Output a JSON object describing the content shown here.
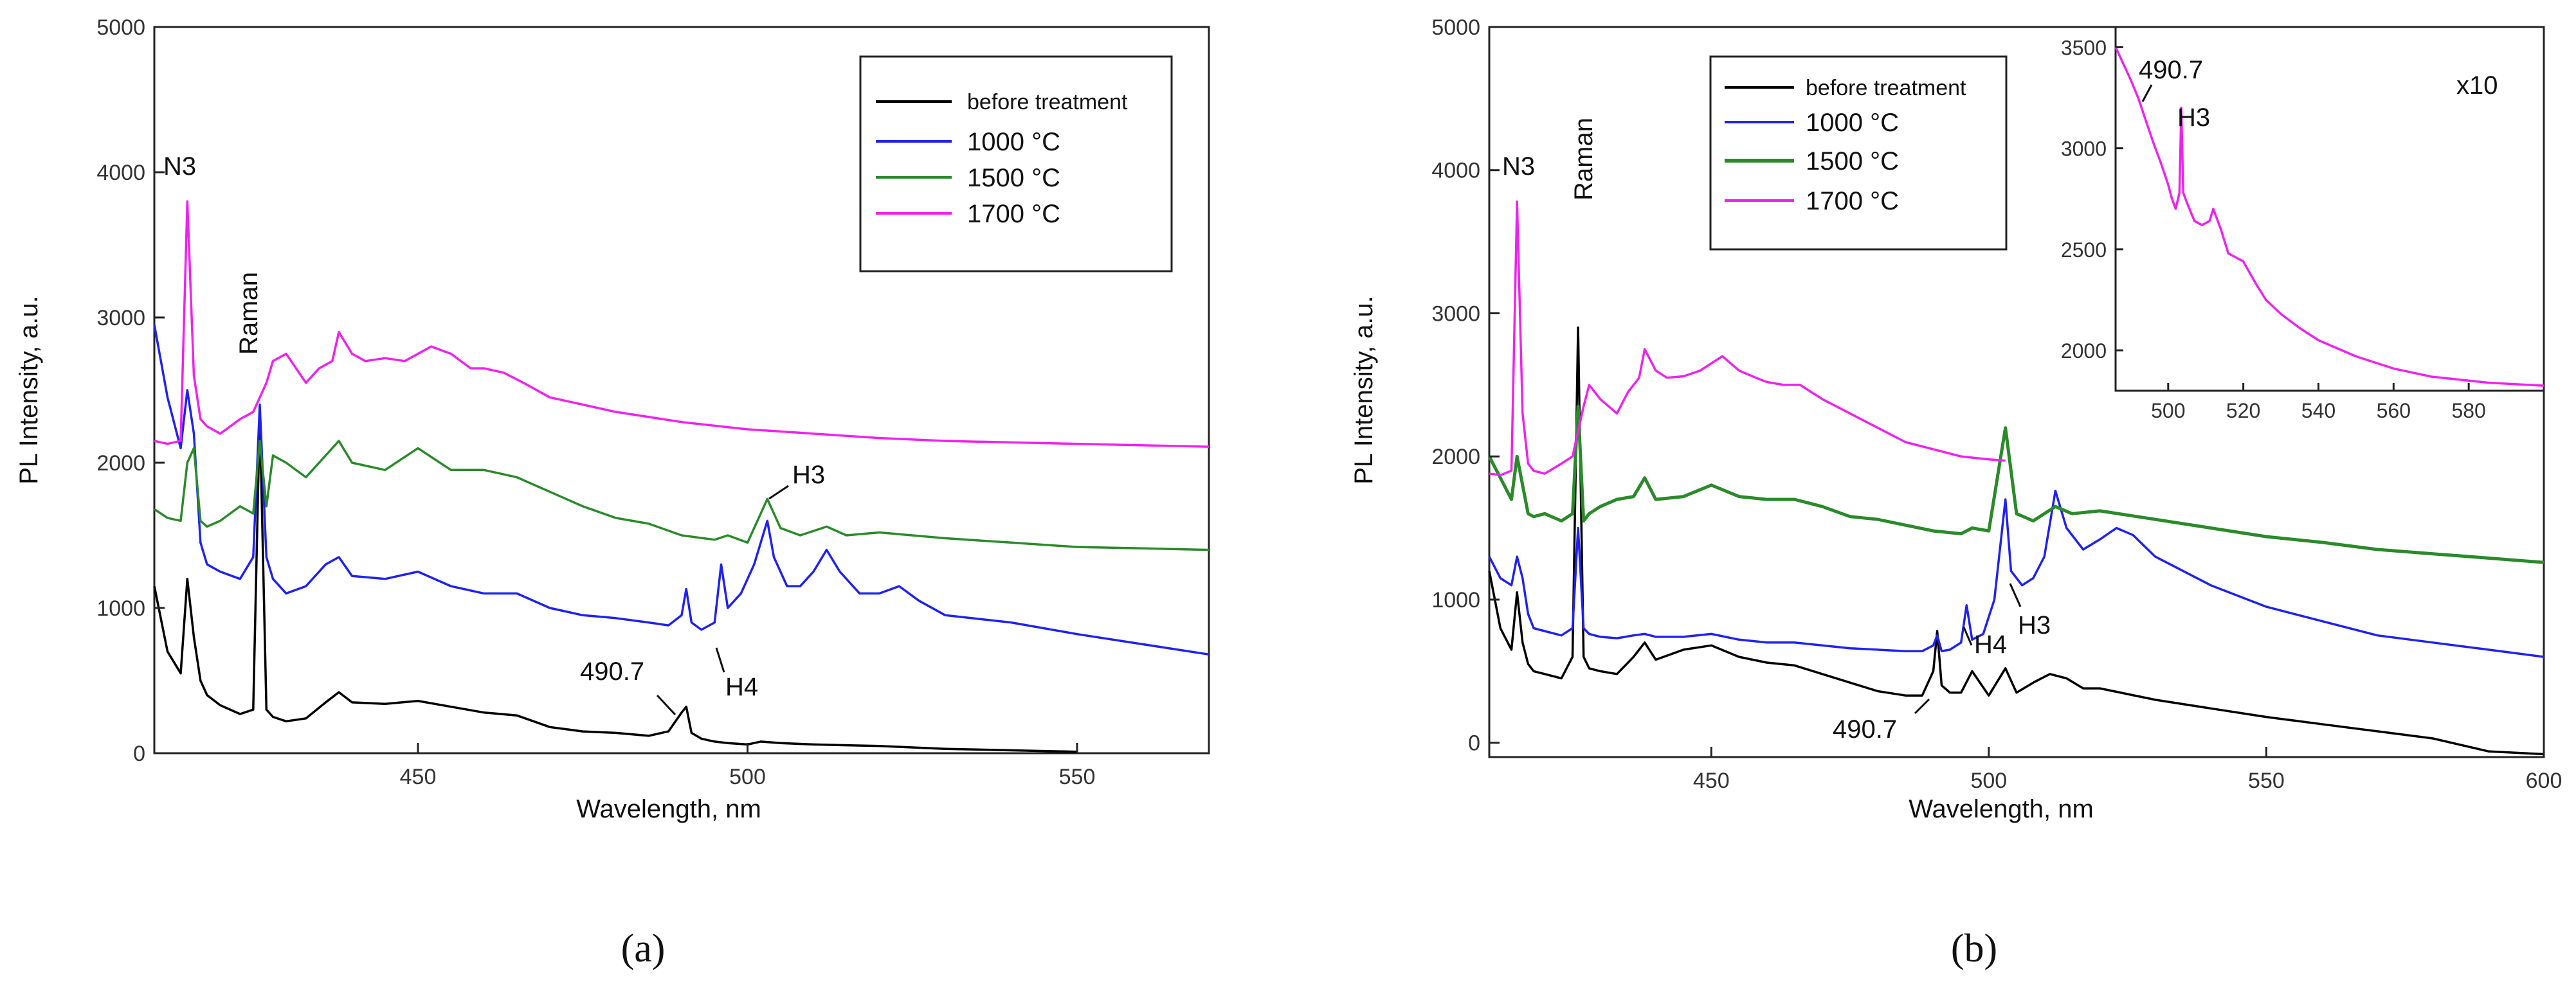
{
  "chart_data": [
    {
      "panel": "(a)",
      "type": "line",
      "xlabel": "Wavelength, nm",
      "ylabel": "PL Intensity, a.u.",
      "xlim": [
        410,
        570
      ],
      "ylim": [
        0,
        5000
      ],
      "xticks": [
        450,
        500,
        550
      ],
      "yticks": [
        0,
        1000,
        2000,
        3000,
        4000,
        5000
      ],
      "legend_position": "top-right",
      "series": [
        {
          "name": "before treatment",
          "color": "#000000",
          "x": [
            410,
            412,
            414,
            415,
            416,
            417,
            418,
            420,
            423,
            425,
            426,
            427,
            428,
            430,
            433,
            436,
            438,
            440,
            445,
            450,
            455,
            460,
            465,
            470,
            475,
            480,
            485,
            488,
            490,
            490.7,
            491.5,
            493,
            495,
            497,
            500,
            502,
            505,
            510,
            515,
            520,
            525,
            530,
            540,
            550
          ],
          "y": [
            1150,
            700,
            550,
            1200,
            800,
            500,
            400,
            330,
            270,
            300,
            2350,
            300,
            250,
            220,
            240,
            350,
            420,
            350,
            340,
            360,
            320,
            280,
            260,
            180,
            150,
            140,
            120,
            150,
            280,
            320,
            140,
            100,
            80,
            70,
            60,
            80,
            70,
            60,
            55,
            50,
            40,
            30,
            20,
            10
          ]
        },
        {
          "name": "1000 °C",
          "color": "#1f22ee",
          "x": [
            410,
            412,
            414,
            415,
            416,
            417,
            418,
            420,
            423,
            425,
            426,
            427,
            428,
            430,
            433,
            436,
            438,
            440,
            445,
            450,
            455,
            460,
            465,
            470,
            475,
            480,
            485,
            488,
            490,
            490.7,
            491.5,
            493,
            495,
            496,
            497,
            499,
            501,
            503,
            504,
            506,
            508,
            510,
            512,
            514,
            517,
            520,
            523,
            526,
            530,
            540,
            550,
            560,
            570
          ],
          "y": [
            2950,
            2450,
            2100,
            2500,
            2200,
            1450,
            1300,
            1250,
            1200,
            1350,
            2400,
            1350,
            1200,
            1100,
            1150,
            1300,
            1350,
            1220,
            1200,
            1250,
            1150,
            1100,
            1100,
            1000,
            950,
            930,
            900,
            880,
            950,
            1130,
            900,
            850,
            900,
            1300,
            1000,
            1100,
            1300,
            1600,
            1350,
            1150,
            1150,
            1250,
            1400,
            1250,
            1100,
            1100,
            1150,
            1050,
            950,
            900,
            820,
            750,
            680
          ]
        },
        {
          "name": "1500 °C",
          "color": "#2a8a2a",
          "x": [
            410,
            412,
            414,
            415,
            416,
            417,
            418,
            420,
            423,
            425,
            426,
            427,
            428,
            430,
            433,
            436,
            438,
            440,
            445,
            450,
            455,
            460,
            465,
            470,
            475,
            480,
            485,
            490,
            495,
            497,
            500,
            503,
            505,
            508,
            512,
            515,
            520,
            530,
            540,
            550,
            560,
            570
          ],
          "y": [
            1680,
            1620,
            1600,
            2000,
            2100,
            1600,
            1560,
            1600,
            1700,
            1650,
            2150,
            1700,
            2050,
            2000,
            1900,
            2050,
            2150,
            2000,
            1950,
            2100,
            1950,
            1950,
            1900,
            1800,
            1700,
            1620,
            1580,
            1500,
            1470,
            1500,
            1450,
            1750,
            1550,
            1500,
            1560,
            1500,
            1520,
            1480,
            1450,
            1420,
            1410,
            1400
          ]
        },
        {
          "name": "1700 °C",
          "color": "#ee22ee",
          "x": [
            410,
            412,
            414,
            415,
            416,
            417,
            418,
            420,
            423,
            425,
            427,
            428,
            430,
            433,
            435,
            437,
            438,
            440,
            442,
            445,
            448,
            452,
            455,
            458,
            460,
            463,
            466,
            470,
            475,
            480,
            490,
            500,
            510,
            520,
            530,
            540,
            550,
            560,
            570
          ],
          "y": [
            2150,
            2130,
            2150,
            3800,
            2600,
            2300,
            2250,
            2200,
            2300,
            2350,
            2550,
            2700,
            2750,
            2550,
            2650,
            2700,
            2900,
            2750,
            2700,
            2720,
            2700,
            2800,
            2750,
            2650,
            2650,
            2620,
            2550,
            2450,
            2400,
            2350,
            2280,
            2230,
            2200,
            2170,
            2150,
            2140,
            2130,
            2120,
            2110
          ]
        }
      ],
      "annotations": [
        "N3",
        "Raman",
        "H3",
        "H4",
        "490.7"
      ]
    },
    {
      "panel": "(b)",
      "type": "line",
      "xlabel": "Wavelength, nm",
      "ylabel": "PL Intensity, a.u.",
      "xlim": [
        410,
        600
      ],
      "ylim": [
        -100,
        5000
      ],
      "xticks": [
        450,
        500,
        550,
        600
      ],
      "yticks": [
        0,
        1000,
        2000,
        3000,
        4000,
        5000
      ],
      "legend_position": "top-left",
      "series": [
        {
          "name": "before treatment",
          "color": "#000000",
          "x": [
            410,
            412,
            414,
            415,
            416,
            417,
            418,
            420,
            423,
            425,
            426,
            427,
            428,
            430,
            433,
            436,
            438,
            440,
            445,
            450,
            455,
            460,
            465,
            470,
            475,
            480,
            485,
            488,
            490,
            490.7,
            491.5,
            493,
            495,
            497,
            500,
            503,
            505,
            508,
            511,
            514,
            517,
            520,
            525,
            530,
            540,
            550,
            560,
            570,
            580,
            590,
            600
          ],
          "y": [
            1200,
            800,
            650,
            1050,
            700,
            550,
            500,
            480,
            450,
            600,
            2900,
            600,
            520,
            500,
            480,
            600,
            700,
            580,
            650,
            680,
            600,
            560,
            540,
            480,
            420,
            360,
            330,
            330,
            500,
            780,
            400,
            350,
            350,
            500,
            330,
            520,
            350,
            420,
            480,
            450,
            380,
            380,
            340,
            300,
            240,
            180,
            130,
            80,
            30,
            -60,
            -80
          ]
        },
        {
          "name": "1000 °C",
          "color": "#1f22ee",
          "x": [
            410,
            412,
            414,
            415,
            416,
            417,
            418,
            420,
            423,
            425,
            426,
            427,
            428,
            430,
            433,
            436,
            438,
            440,
            445,
            450,
            455,
            460,
            465,
            470,
            475,
            480,
            485,
            488,
            490,
            490.7,
            491.5,
            493,
            495,
            496,
            497,
            499,
            501,
            503,
            504,
            506,
            508,
            510,
            512,
            514,
            517,
            520,
            523,
            526,
            530,
            540,
            550,
            560,
            570,
            580,
            590,
            600
          ],
          "y": [
            1300,
            1150,
            1100,
            1300,
            1150,
            900,
            800,
            780,
            750,
            800,
            1500,
            800,
            760,
            740,
            730,
            750,
            760,
            740,
            740,
            760,
            720,
            700,
            700,
            680,
            660,
            650,
            640,
            640,
            680,
            750,
            640,
            650,
            700,
            960,
            720,
            760,
            1000,
            1700,
            1200,
            1100,
            1150,
            1300,
            1760,
            1500,
            1350,
            1420,
            1500,
            1450,
            1300,
            1100,
            950,
            850,
            750,
            700,
            650,
            600
          ]
        },
        {
          "name": "1500 °C",
          "color": "#2a8a2a",
          "x": [
            410,
            412,
            414,
            415,
            416,
            417,
            418,
            420,
            423,
            425,
            426,
            427,
            428,
            430,
            433,
            436,
            438,
            440,
            445,
            450,
            455,
            460,
            465,
            470,
            475,
            480,
            485,
            490,
            495,
            497,
            500,
            503,
            505,
            508,
            512,
            515,
            520,
            530,
            540,
            550,
            560,
            570,
            580,
            590,
            600
          ],
          "y": [
            2000,
            1850,
            1700,
            2000,
            1800,
            1600,
            1580,
            1600,
            1550,
            1600,
            2350,
            1550,
            1600,
            1650,
            1700,
            1720,
            1850,
            1700,
            1720,
            1800,
            1720,
            1700,
            1700,
            1650,
            1580,
            1560,
            1520,
            1480,
            1460,
            1500,
            1480,
            2200,
            1600,
            1550,
            1650,
            1600,
            1620,
            1560,
            1500,
            1440,
            1400,
            1350,
            1320,
            1290,
            1260
          ]
        },
        {
          "name": "1700 °C",
          "color": "#ee22ee",
          "x": [
            410,
            412,
            414,
            415,
            416,
            417,
            418,
            420,
            423,
            425,
            427,
            428,
            430,
            433,
            435,
            437,
            438,
            440,
            442,
            445,
            448,
            452,
            455,
            458,
            460,
            463,
            466,
            470,
            475,
            480,
            485,
            490,
            495,
            500,
            503
          ],
          "y": [
            1880,
            1870,
            1900,
            3780,
            2300,
            1950,
            1900,
            1880,
            1950,
            2000,
            2350,
            2500,
            2400,
            2300,
            2450,
            2550,
            2750,
            2600,
            2550,
            2560,
            2600,
            2700,
            2600,
            2550,
            2520,
            2500,
            2500,
            2400,
            2300,
            2200,
            2100,
            2050,
            2000,
            1980,
            1970
          ]
        }
      ],
      "annotations": [
        "N3",
        "Raman",
        "H3",
        "H4",
        "490.7"
      ],
      "inset": {
        "xlim": [
          486,
          600
        ],
        "ylim": [
          1800,
          3600
        ],
        "xticks": [
          500,
          520,
          540,
          560,
          580
        ],
        "yticks": [
          2000,
          2500,
          3000,
          3500
        ],
        "label": "x10",
        "annotations": [
          "490.7",
          "H3"
        ],
        "series": {
          "name": "1700 °C",
          "color": "#ee22ee",
          "x": [
            486,
            488,
            490,
            492,
            494,
            496,
            498,
            500,
            501,
            502,
            503,
            503.5,
            504,
            505,
            507,
            509,
            511,
            512,
            514,
            516,
            518,
            520,
            523,
            526,
            530,
            535,
            540,
            545,
            550,
            555,
            560,
            565,
            570,
            575,
            580,
            585,
            590,
            595,
            600
          ],
          "y": [
            3500,
            3420,
            3340,
            3250,
            3140,
            3030,
            2930,
            2820,
            2750,
            2700,
            2780,
            3200,
            2780,
            2730,
            2640,
            2620,
            2640,
            2700,
            2600,
            2480,
            2460,
            2440,
            2340,
            2250,
            2180,
            2110,
            2050,
            2010,
            1970,
            1940,
            1910,
            1890,
            1870,
            1860,
            1850,
            1840,
            1835,
            1830,
            1825
          ]
        }
      }
    }
  ],
  "panel_labels": [
    "(a)",
    "(b)"
  ]
}
